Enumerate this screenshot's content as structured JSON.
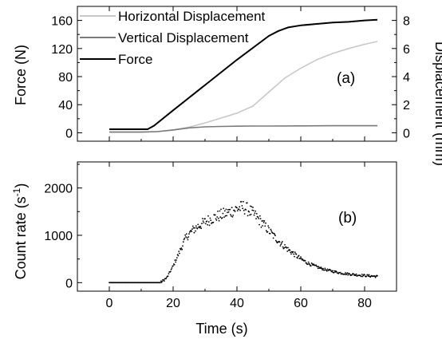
{
  "chart_data": [
    {
      "type": "line",
      "panel_label": "(a)",
      "ylabel_left": "Force (N)",
      "ylabel_right": "Displacement (mm)",
      "xlim": [
        -10,
        90
      ],
      "ylim_left": [
        -12,
        180
      ],
      "ylim_right": [
        -0.6,
        9.0
      ],
      "x_ticks": [
        0,
        20,
        40,
        60,
        80
      ],
      "y_ticks_left": [
        0,
        40,
        80,
        120,
        160
      ],
      "y_ticks_right": [
        0,
        2,
        4,
        6,
        8
      ],
      "legend_position": "top-left",
      "series": [
        {
          "name": "Horizontal Displacement",
          "axis": "right",
          "color": "#c8c8c8",
          "x": [
            0,
            10,
            15,
            20,
            25,
            30,
            35,
            40,
            45,
            50,
            55,
            60,
            65,
            70,
            75,
            80,
            84
          ],
          "y": [
            0.05,
            0.05,
            0.08,
            0.2,
            0.4,
            0.7,
            1.05,
            1.4,
            1.9,
            2.9,
            3.9,
            4.6,
            5.2,
            5.65,
            6.0,
            6.3,
            6.5
          ]
        },
        {
          "name": "Vertical Displacement",
          "axis": "right",
          "color": "#7a7a7a",
          "x": [
            0,
            10,
            15,
            20,
            25,
            30,
            35,
            40,
            45,
            50,
            60,
            70,
            84
          ],
          "y": [
            0.05,
            0.05,
            0.08,
            0.2,
            0.35,
            0.42,
            0.45,
            0.47,
            0.48,
            0.48,
            0.49,
            0.5,
            0.5
          ]
        },
        {
          "name": "Force",
          "axis": "left",
          "color": "#000000",
          "x": [
            0,
            12,
            14,
            20,
            30,
            40,
            50,
            53,
            56,
            60,
            65,
            70,
            75,
            80,
            84
          ],
          "y": [
            5,
            5,
            10,
            32,
            68,
            104,
            138,
            145,
            150,
            153,
            155,
            157,
            158,
            160,
            161
          ]
        }
      ]
    },
    {
      "type": "scatter",
      "panel_label": "(b)",
      "ylabel": "Count rate (s-1)",
      "xlabel": "Time (s)",
      "xlim": [
        -10,
        90
      ],
      "ylim": [
        -180,
        2550
      ],
      "x_ticks": [
        0,
        20,
        40,
        60,
        80
      ],
      "y_ticks": [
        0,
        1000,
        2000
      ],
      "color": "#000000",
      "envelope_x": [
        0,
        16,
        18,
        20,
        22,
        24,
        26,
        28,
        30,
        32,
        34,
        36,
        38,
        40,
        42,
        44,
        46,
        48,
        50,
        52,
        54,
        56,
        58,
        60,
        62,
        64,
        66,
        68,
        70,
        72,
        74,
        76,
        78,
        80,
        82,
        84
      ],
      "envelope_y": [
        0,
        0,
        100,
        350,
        650,
        950,
        1100,
        1200,
        1280,
        1350,
        1400,
        1450,
        1500,
        1560,
        1600,
        1520,
        1400,
        1250,
        1100,
        950,
        820,
        700,
        600,
        500,
        420,
        360,
        310,
        270,
        240,
        210,
        190,
        175,
        160,
        150,
        140,
        130
      ],
      "point_spacing": 0.2,
      "point_count": 421
    }
  ],
  "xlabel": "Time (s)",
  "count_rate_label": {
    "main": "Count rate (s",
    "sup": "-1",
    "close": ")"
  }
}
